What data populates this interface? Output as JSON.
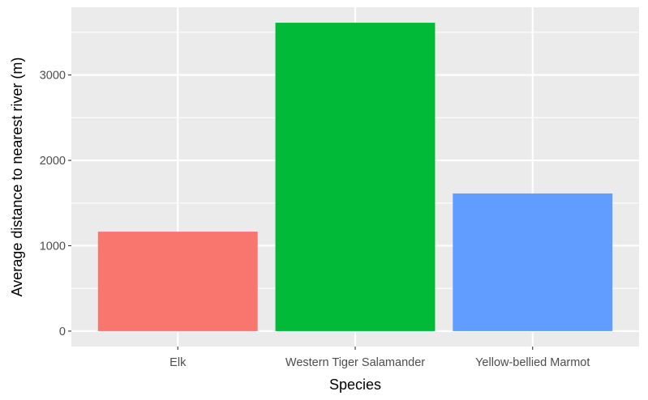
{
  "chart_data": {
    "type": "bar",
    "categories": [
      "Elk",
      "Western Tiger Salamander",
      "Yellow-bellied Marmot"
    ],
    "values": [
      1165,
      3612,
      1612
    ],
    "colors": [
      "#F8766D",
      "#00BA38",
      "#619CFF"
    ],
    "xlabel": "Species",
    "ylabel": "Average distance to nearest river (m)",
    "ylim": [
      -181,
      3793
    ],
    "yticks": [
      0,
      1000,
      2000,
      3000
    ],
    "ytick_labels": [
      "0",
      "1000",
      "2000",
      "3000"
    ],
    "grid": true,
    "panel_background": "#EBEBEB",
    "grid_color": "#FFFFFF"
  }
}
